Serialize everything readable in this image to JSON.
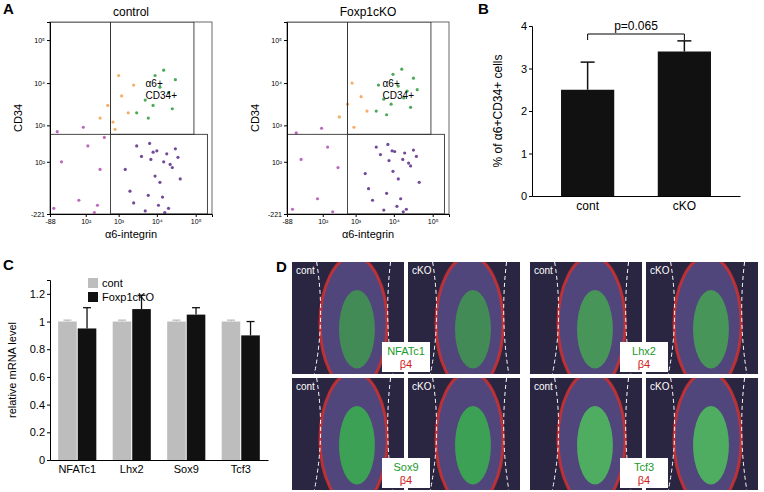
{
  "chart_data": [
    {
      "type": "scatter",
      "panel": "A",
      "title": "control",
      "xlabel": "α6-integrin",
      "ylabel": "CD34",
      "xlim": [
        -88,
        262143
      ],
      "ylim": [
        -221,
        262143
      ],
      "xticks": [
        -88,
        {
          "value": 100,
          "label": "10²"
        },
        {
          "value": 1000,
          "label": "10³"
        },
        {
          "value": 10000,
          "label": "10⁴"
        },
        {
          "value": 100000,
          "label": "10⁵"
        }
      ],
      "yticks": [
        -221,
        {
          "value": 100,
          "label": "10²"
        },
        {
          "value": 1000,
          "label": "10³"
        },
        {
          "value": 10000,
          "label": "10⁴"
        },
        {
          "value": 100000,
          "label": "10⁵"
        }
      ],
      "gates": [
        {
          "x": [
            -88,
            600
          ],
          "y": [
            600,
            262143
          ]
        },
        {
          "x": [
            600,
            90000
          ],
          "y": [
            600,
            262143
          ]
        },
        {
          "x": [
            600,
            200000
          ],
          "y": [
            -221,
            600
          ]
        }
      ],
      "annotation": [
        "α6+",
        "CD34+"
      ],
      "series": [
        {
          "color": "#5b2a86",
          "x": [
            1500,
            2500,
            4000,
            6000,
            8000,
            12000,
            15000,
            20000,
            25000,
            30000,
            3000,
            5000,
            9000,
            14000,
            18000,
            7000,
            11000,
            22000,
            40000,
            2000,
            6500,
            10000,
            16000,
            35000
          ],
          "values": [
            50,
            -100,
            150,
            -50,
            200,
            0,
            100,
            -150,
            60,
            250,
            300,
            -180,
            20,
            -60,
            180,
            120,
            -120,
            80,
            10,
            -30,
            350,
            220,
            -200,
            140
          ]
        },
        {
          "color": "#b04fb0",
          "x": [
            -60,
            -20,
            50,
            120,
            200,
            300,
            400,
            -40,
            80,
            250
          ],
          "values": [
            -150,
            100,
            -80,
            300,
            -200,
            50,
            500,
            700,
            900,
            -120
          ]
        },
        {
          "color": "#f0a050",
          "x": [
            300,
            500,
            800,
            1200,
            1800,
            2500,
            700,
            1000
          ],
          "values": [
            1500,
            3000,
            800,
            5000,
            2000,
            9000,
            1200,
            15000
          ]
        },
        {
          "color": "#2e9a3a",
          "x": [
            3000,
            5000,
            8000,
            12000,
            20000,
            30000,
            15000,
            9000,
            6000,
            25000
          ],
          "values": [
            2000,
            4000,
            3000,
            8000,
            6000,
            12000,
            20000,
            15000,
            1500,
            2500
          ]
        }
      ]
    },
    {
      "type": "scatter",
      "title": "Foxp1cKO",
      "xlabel": "α6-integrin",
      "ylabel": "CD34",
      "xlim": [
        -88,
        262143
      ],
      "ylim": [
        -221,
        262143
      ],
      "xticks": [
        -88,
        {
          "value": 100,
          "label": "10²"
        },
        {
          "value": 1000,
          "label": "10³"
        },
        {
          "value": 10000,
          "label": "10⁴"
        },
        {
          "value": 100000,
          "label": "10⁵"
        }
      ],
      "yticks": [
        -221,
        {
          "value": 100,
          "label": "10²"
        },
        {
          "value": 1000,
          "label": "10³"
        },
        {
          "value": 10000,
          "label": "10⁴"
        },
        {
          "value": 100000,
          "label": "10⁵"
        }
      ],
      "gates": [
        {
          "x": [
            -88,
            600
          ],
          "y": [
            600,
            262143
          ]
        },
        {
          "x": [
            600,
            90000
          ],
          "y": [
            600,
            262143
          ]
        },
        {
          "x": [
            600,
            200000
          ],
          "y": [
            -221,
            600
          ]
        }
      ],
      "annotation": [
        "α6+",
        "CD34+"
      ],
      "series": [
        {
          "color": "#5b2a86",
          "x": [
            1800,
            2800,
            4500,
            6500,
            9000,
            13000,
            17000,
            21000,
            27000,
            32000,
            3500,
            5500,
            9500,
            15000,
            19000,
            7500,
            12000,
            24000,
            45000,
            2200,
            7000,
            10500,
            17500,
            38000
          ],
          "values": [
            30,
            -80,
            170,
            -40,
            220,
            10,
            120,
            -160,
            70,
            230,
            280,
            -170,
            40,
            -70,
            190,
            110,
            -130,
            90,
            0,
            -20,
            330,
            210,
            -190,
            150
          ]
        },
        {
          "color": "#b04fb0",
          "x": [
            -50,
            -10,
            60,
            150,
            220,
            320,
            -30,
            90
          ],
          "values": [
            -160,
            120,
            -70,
            280,
            -190,
            60,
            650,
            850
          ]
        },
        {
          "color": "#f0a050",
          "x": [
            350,
            600,
            900,
            1400,
            2000,
            800
          ],
          "values": [
            1600,
            3200,
            900,
            4800,
            2200,
            10000
          ]
        },
        {
          "color": "#2e9a3a",
          "x": [
            3500,
            5500,
            8500,
            13000,
            22000,
            32000,
            16000,
            9500,
            6500,
            27000,
            4000,
            18000,
            40000
          ],
          "values": [
            2200,
            4200,
            3200,
            8500,
            6500,
            13000,
            21000,
            16000,
            1800,
            2700,
            9000,
            4500,
            7000
          ]
        }
      ]
    },
    {
      "type": "bar",
      "panel": "B",
      "ylabel": "% of α6+CD34+ cells",
      "categories": [
        "cont",
        "cKO"
      ],
      "values": [
        2.5,
        3.4
      ],
      "errors": [
        0.65,
        0.25
      ],
      "color": "#111111",
      "ylim": [
        0,
        4
      ],
      "yticks": [
        0,
        1,
        2,
        3,
        4
      ],
      "annotation": "p=0.065"
    },
    {
      "type": "bar",
      "panel": "C",
      "ylabel": "relative mRNA level",
      "categories": [
        "NFATc1",
        "Lhx2",
        "Sox9",
        "Tcf3"
      ],
      "series": [
        {
          "name": "cont",
          "color": "#bdbdbd",
          "values": [
            1,
            1,
            1,
            1
          ],
          "errors": [
            0.01,
            0.01,
            0.01,
            0.01
          ]
        },
        {
          "name": "Foxp1cKO",
          "color": "#111111",
          "values": [
            0.95,
            1.09,
            1.05,
            0.9
          ],
          "errors": [
            0.15,
            0.1,
            0.05,
            0.1
          ]
        }
      ],
      "ylim": [
        0,
        1.3
      ],
      "yticks": [
        0,
        0.2,
        0.4,
        0.6,
        0.8,
        1,
        1.2
      ],
      "legend": "upper left"
    },
    {
      "type": "image",
      "panel": "D",
      "images": [
        {
          "labels": [
            "cont",
            "cKO"
          ],
          "stain": "NFATc1",
          "counterstain": "β4"
        },
        {
          "labels": [
            "cont",
            "cKO"
          ],
          "stain": "Lhx2",
          "counterstain": "β4"
        },
        {
          "labels": [
            "cont",
            "cKO"
          ],
          "stain": "Sox9",
          "counterstain": "β4"
        },
        {
          "labels": [
            "cont",
            "cKO"
          ],
          "stain": "Tcf3",
          "counterstain": "β4"
        }
      ]
    }
  ]
}
